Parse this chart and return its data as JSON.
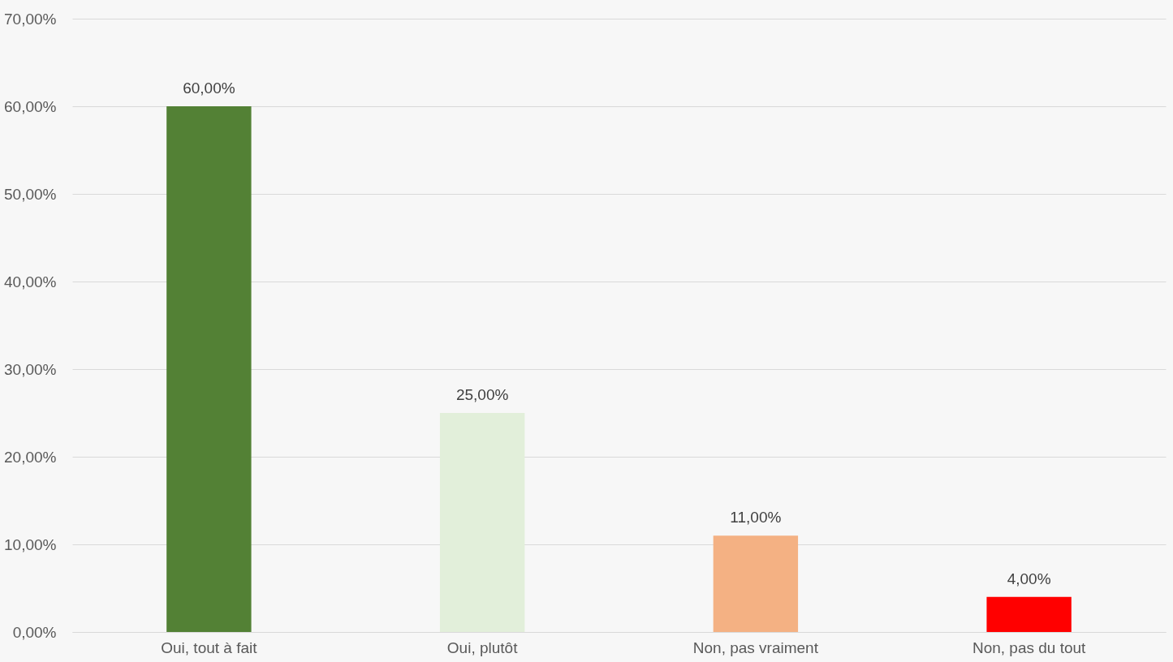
{
  "chart_data": {
    "type": "bar",
    "categories": [
      "Oui, tout à fait",
      "Oui, plutôt",
      "Non, pas vraiment",
      "Non, pas du tout"
    ],
    "values": [
      60,
      25,
      11,
      4
    ],
    "colors": [
      "#538135",
      "#e2efda",
      "#f4b183",
      "#ff0000"
    ],
    "value_labels": [
      "60,00%",
      "25,00%",
      "11,00%",
      "4,00%"
    ],
    "ylim": [
      0,
      70
    ],
    "yticks": [
      {
        "value": 0,
        "label": "0,00%"
      },
      {
        "value": 10,
        "label": "10,00%"
      },
      {
        "value": 20,
        "label": "20,00%"
      },
      {
        "value": 30,
        "label": "30,00%"
      },
      {
        "value": 40,
        "label": "40,00%"
      },
      {
        "value": 50,
        "label": "50,00%"
      },
      {
        "value": 60,
        "label": "60,00%"
      },
      {
        "value": 70,
        "label": "70,00%"
      }
    ],
    "grid": "y"
  }
}
